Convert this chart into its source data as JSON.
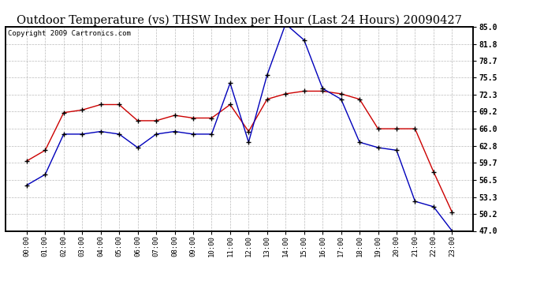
{
  "title": "Outdoor Temperature (vs) THSW Index per Hour (Last 24 Hours) 20090427",
  "copyright": "Copyright 2009 Cartronics.com",
  "x_labels": [
    "00:00",
    "01:00",
    "02:00",
    "03:00",
    "04:00",
    "05:00",
    "06:00",
    "07:00",
    "08:00",
    "09:00",
    "10:00",
    "11:00",
    "12:00",
    "13:00",
    "14:00",
    "15:00",
    "16:00",
    "17:00",
    "18:00",
    "19:00",
    "20:00",
    "21:00",
    "22:00",
    "23:00"
  ],
  "temp_blue": [
    55.5,
    57.5,
    65.0,
    65.0,
    65.5,
    65.0,
    62.5,
    65.0,
    65.5,
    65.0,
    65.0,
    74.5,
    63.5,
    76.0,
    85.5,
    82.5,
    73.5,
    71.5,
    63.5,
    62.5,
    62.0,
    52.5,
    51.5,
    47.0
  ],
  "thsw_red": [
    60.0,
    62.0,
    69.0,
    69.5,
    70.5,
    70.5,
    67.5,
    67.5,
    68.5,
    68.0,
    68.0,
    70.5,
    65.5,
    71.5,
    72.5,
    73.0,
    73.0,
    72.5,
    71.5,
    66.0,
    66.0,
    66.0,
    58.0,
    50.5
  ],
  "ylim": [
    47.0,
    85.0
  ],
  "yticks": [
    47.0,
    50.2,
    53.3,
    56.5,
    59.7,
    62.8,
    66.0,
    69.2,
    72.3,
    75.5,
    78.7,
    81.8,
    85.0
  ],
  "ytick_labels": [
    "47.0",
    "50.2",
    "53.3",
    "56.5",
    "59.7",
    "62.8",
    "66.0",
    "69.2",
    "72.3",
    "75.5",
    "78.7",
    "81.8",
    "85.0"
  ],
  "blue_color": "#0000bb",
  "red_color": "#cc0000",
  "bg_color": "#ffffff",
  "grid_color": "#aaaaaa",
  "title_fontsize": 10.5,
  "copyright_fontsize": 6.5,
  "marker_color": "#000055"
}
